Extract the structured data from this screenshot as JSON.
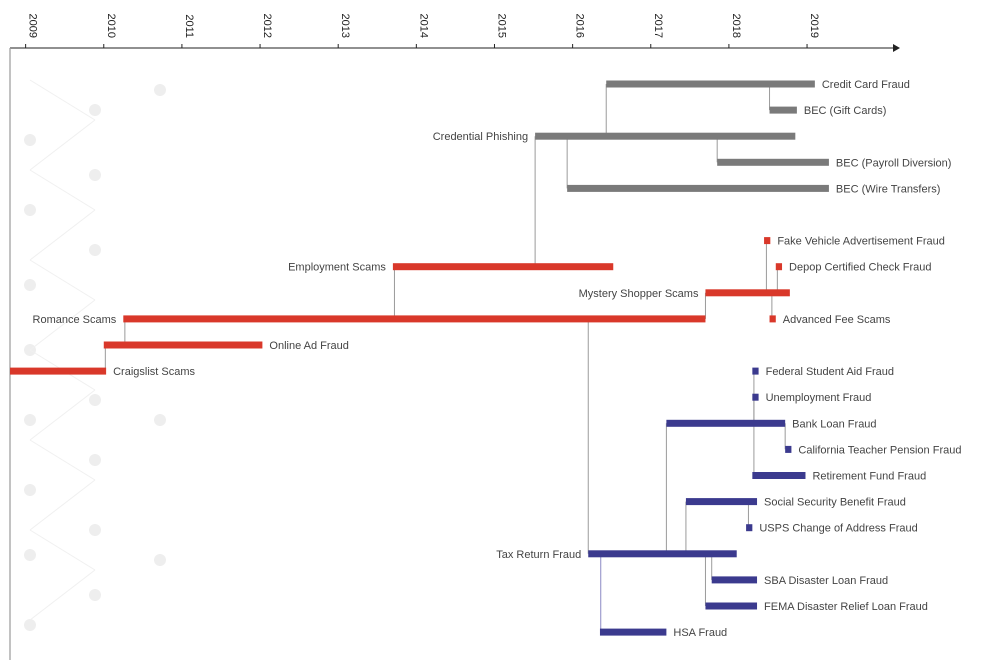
{
  "chart_data": {
    "type": "timeline",
    "axis": {
      "ticks": [
        "2009",
        "2010",
        "2011",
        "2012",
        "2013",
        "2014",
        "2015",
        "2016",
        "2017",
        "2018",
        "2019"
      ],
      "xlim": [
        2008.8,
        2020.1
      ]
    },
    "grid": false,
    "legend": "none",
    "colors": {
      "gray": "#7a7a7a",
      "red": "#d9382a",
      "blue": "#3b3a8e"
    },
    "bars": [
      {
        "id": "craigslist",
        "label": "Craigslist Scams",
        "start": 2008.8,
        "end": 2010.03,
        "color": "red",
        "label_side": "right"
      },
      {
        "id": "online-ad",
        "label": "Online Ad Fraud",
        "start": 2010.0,
        "end": 2012.03,
        "color": "red",
        "label_side": "right",
        "parent": "craigslist",
        "branch_x": 2010.02
      },
      {
        "id": "romance",
        "label": "Romance Scams",
        "start": 2010.25,
        "end": 2017.7,
        "color": "red",
        "label_side": "left",
        "parent": "online-ad",
        "branch_x": 2010.27
      },
      {
        "id": "employment",
        "label": "Employment Scams",
        "start": 2013.7,
        "end": 2016.52,
        "color": "red",
        "label_side": "left",
        "parent": "romance",
        "branch_x": 2013.72
      },
      {
        "id": "mystery",
        "label": "Mystery Shopper Scams",
        "start": 2017.7,
        "end": 2018.78,
        "color": "red",
        "label_side": "left",
        "parent": "romance",
        "branch_x": 2017.7
      },
      {
        "id": "fake-vehicle",
        "label": "Fake Vehicle Advertisement Fraud",
        "start": 2018.45,
        "end": 2018.53,
        "color": "red",
        "label_side": "right",
        "parent": "mystery",
        "branch_x": 2018.48
      },
      {
        "id": "depop",
        "label": "Depop Certified Check Fraud",
        "start": 2018.6,
        "end": 2018.68,
        "color": "red",
        "label_side": "right",
        "parent": "mystery",
        "branch_x": 2018.62
      },
      {
        "id": "advanced-fee",
        "label": "Advanced Fee Scams",
        "start": 2018.52,
        "end": 2018.6,
        "color": "red",
        "label_side": "right",
        "parent": "mystery",
        "branch_x": 2018.55
      },
      {
        "id": "cred-phish",
        "label": "Credential Phishing",
        "start": 2015.52,
        "end": 2018.85,
        "color": "gray",
        "label_side": "left",
        "parent": "employment",
        "branch_x": 2015.52
      },
      {
        "id": "credit-card",
        "label": "Credit Card Fraud",
        "start": 2016.43,
        "end": 2019.1,
        "color": "gray",
        "label_side": "right",
        "parent": "cred-phish",
        "branch_x": 2016.43
      },
      {
        "id": "bec-gift",
        "label": "BEC (Gift Cards)",
        "start": 2018.52,
        "end": 2018.87,
        "color": "gray",
        "label_side": "right",
        "parent": "credit-card",
        "branch_x": 2018.52
      },
      {
        "id": "bec-payroll",
        "label": "BEC (Payroll Diversion)",
        "start": 2017.85,
        "end": 2019.28,
        "color": "gray",
        "label_side": "right",
        "parent": "cred-phish",
        "branch_x": 2017.85
      },
      {
        "id": "bec-wire",
        "label": "BEC (Wire Transfers)",
        "start": 2015.93,
        "end": 2019.28,
        "color": "gray",
        "label_side": "right",
        "parent": "cred-phish",
        "branch_x": 2015.93
      },
      {
        "id": "tax-return",
        "label": "Tax Return Fraud",
        "start": 2016.2,
        "end": 2018.1,
        "color": "blue",
        "label_side": "left",
        "parent": "romance",
        "branch_x": 2016.2
      },
      {
        "id": "federal-aid",
        "label": "Federal Student Aid Fraud",
        "start": 2018.3,
        "end": 2018.38,
        "color": "blue",
        "label_side": "right",
        "parent": "bank-loan",
        "branch_x": 2018.32
      },
      {
        "id": "unemployment",
        "label": "Unemployment Fraud",
        "start": 2018.3,
        "end": 2018.38,
        "color": "blue",
        "label_side": "right",
        "parent": "bank-loan",
        "branch_x": 2018.32
      },
      {
        "id": "bank-loan",
        "label": "Bank Loan Fraud",
        "start": 2017.2,
        "end": 2018.72,
        "color": "blue",
        "label_side": "right",
        "parent": "tax-return",
        "branch_x": 2017.2
      },
      {
        "id": "ca-teacher",
        "label": "California Teacher Pension Fraud",
        "start": 2018.72,
        "end": 2018.8,
        "color": "blue",
        "label_side": "right",
        "parent": "bank-loan",
        "branch_x": 2018.72
      },
      {
        "id": "retirement",
        "label": "Retirement Fund Fraud",
        "start": 2018.3,
        "end": 2018.98,
        "color": "blue",
        "label_side": "right",
        "parent": "bank-loan",
        "branch_x": 2018.32
      },
      {
        "id": "social-sec",
        "label": "Social Security Benefit Fraud",
        "start": 2017.45,
        "end": 2018.36,
        "color": "blue",
        "label_side": "right",
        "parent": "tax-return",
        "branch_x": 2017.45
      },
      {
        "id": "usps",
        "label": "USPS Change of Address Fraud",
        "start": 2018.22,
        "end": 2018.3,
        "color": "blue",
        "label_side": "right",
        "parent": "social-sec",
        "branch_x": 2018.25
      },
      {
        "id": "sba",
        "label": "SBA Disaster Loan Fraud",
        "start": 2017.78,
        "end": 2018.36,
        "color": "blue",
        "label_side": "right",
        "parent": "tax-return",
        "branch_x": 2017.78
      },
      {
        "id": "fema",
        "label": "FEMA Disaster Relief Loan Fraud",
        "start": 2017.7,
        "end": 2018.36,
        "color": "blue",
        "label_side": "right",
        "parent": "tax-return",
        "branch_x": 2017.7
      },
      {
        "id": "hsa",
        "label": "HSA Fraud",
        "start": 2016.35,
        "end": 2017.2,
        "color": "blue",
        "label_side": "right",
        "parent": "tax-return",
        "branch_x": 2016.36
      }
    ]
  }
}
